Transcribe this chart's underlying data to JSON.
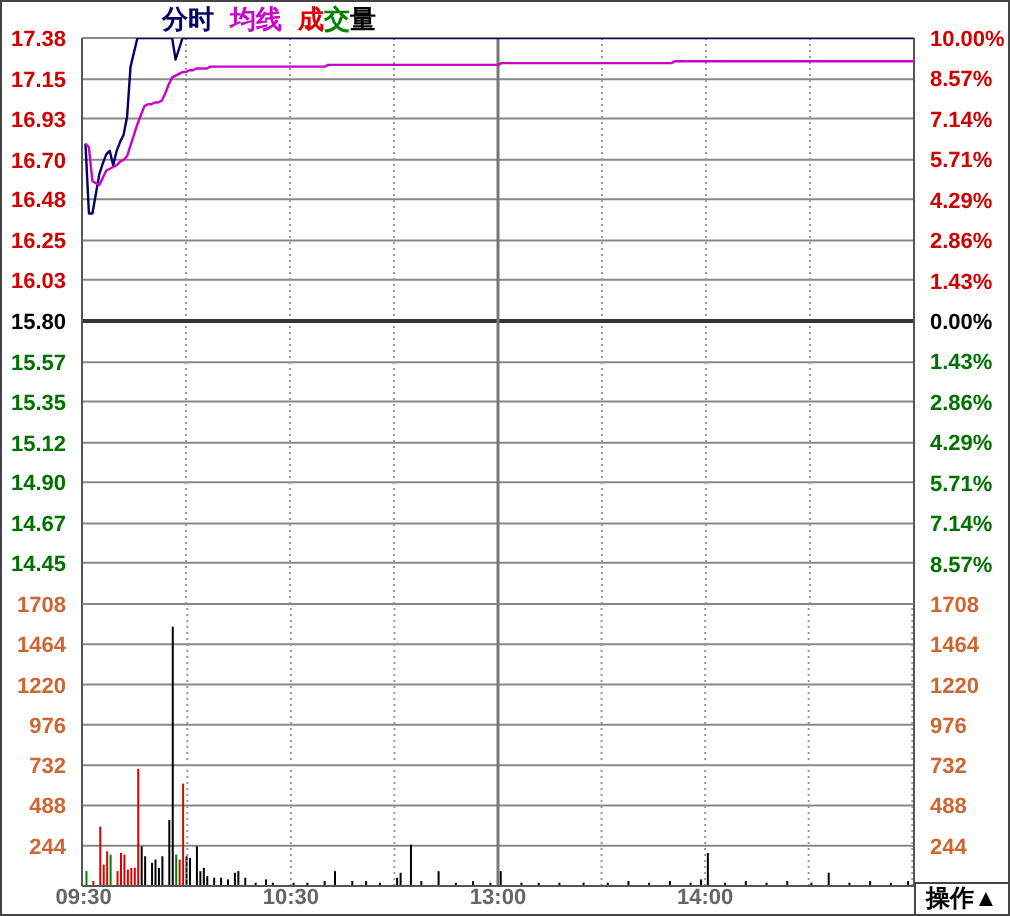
{
  "chart_data": [
    {
      "type": "line",
      "legend": "top left",
      "marker": "none",
      "categories": [
        "09:30",
        null,
        null,
        null,
        null,
        null,
        null,
        null,
        null,
        null,
        null,
        null,
        null,
        null,
        null,
        null,
        null,
        null,
        null,
        null,
        null,
        null,
        null,
        null,
        null,
        null,
        null,
        null,
        null,
        null,
        null,
        null,
        null,
        null,
        null,
        null,
        null,
        null,
        null,
        null,
        null,
        null,
        null,
        null,
        null,
        null,
        null,
        null,
        null,
        null,
        null,
        null,
        null,
        null,
        null,
        null,
        null,
        null,
        null,
        null,
        "10:30",
        null,
        null,
        null,
        null,
        null,
        null,
        null,
        null,
        null,
        null,
        null,
        null,
        null,
        null,
        null,
        null,
        null,
        null,
        null,
        null,
        null,
        null,
        null,
        null,
        null,
        null,
        null,
        null,
        null,
        null,
        null,
        null,
        null,
        null,
        null,
        null,
        null,
        null,
        null,
        null,
        null,
        null,
        null,
        null,
        null,
        null,
        null,
        null,
        null,
        null,
        null,
        null,
        null,
        null,
        null,
        null,
        null,
        null,
        null,
        "13:00",
        null,
        null,
        null,
        null,
        null,
        null,
        null,
        null,
        null,
        null,
        null,
        null,
        null,
        null,
        null,
        null,
        null,
        null,
        null,
        null,
        null,
        null,
        null,
        null,
        null,
        null,
        null,
        null,
        null,
        null,
        null,
        null,
        null,
        null,
        null,
        null,
        null,
        null,
        null,
        null,
        null,
        null,
        null,
        null,
        null,
        null,
        null,
        null,
        null,
        null,
        null,
        null,
        null,
        null,
        null,
        null,
        null,
        null,
        null,
        "14:00",
        null,
        null,
        null,
        null,
        null,
        null,
        null,
        null,
        null,
        null,
        null,
        null,
        null,
        null,
        null,
        null,
        null,
        null,
        null,
        null,
        null,
        null,
        null,
        null,
        null,
        null,
        null,
        null,
        null,
        null,
        null,
        null,
        null,
        null,
        null,
        null,
        null,
        null,
        null,
        null,
        null,
        null,
        null,
        null,
        null,
        null,
        null,
        null,
        null,
        null,
        null,
        null,
        null,
        null,
        null,
        null,
        null,
        null,
        null,
        null
      ],
      "series": [
        {
          "name": "分时",
          "color": "#000066",
          "values": [
            null,
            16.79,
            16.4,
            16.4,
            16.51,
            16.62,
            16.68,
            16.73,
            16.75,
            16.67,
            16.75,
            16.8,
            16.84,
            16.94,
            17.22,
            17.3,
            17.38,
            17.38,
            17.38,
            17.38,
            17.38,
            17.38,
            17.38,
            17.38,
            17.38,
            17.38,
            17.38,
            17.26,
            17.32,
            17.38,
            17.38,
            17.38,
            17.38,
            17.38,
            17.38,
            17.38,
            17.38,
            17.38,
            17.38,
            17.38,
            17.38,
            17.38,
            17.38,
            17.38,
            17.38,
            17.38,
            17.38,
            17.38,
            17.38,
            17.38,
            17.38,
            17.38,
            17.38,
            17.38,
            17.38,
            17.38,
            17.38,
            17.38,
            17.38,
            17.38,
            17.38,
            17.38,
            17.38,
            17.38,
            17.38,
            17.38,
            17.38,
            17.38,
            17.38,
            17.38,
            17.38,
            17.38,
            17.38,
            17.38,
            17.38,
            17.38,
            17.38,
            17.38,
            17.38,
            17.38,
            17.38,
            17.38,
            17.38,
            17.38,
            17.38,
            17.38,
            17.38,
            17.38,
            17.38,
            17.38,
            17.38,
            17.38,
            17.38,
            17.38,
            17.38,
            17.38,
            17.38,
            17.38,
            17.38,
            17.38,
            17.38,
            17.38,
            17.38,
            17.38,
            17.38,
            17.38,
            17.38,
            17.38,
            17.38,
            17.38,
            17.38,
            17.38,
            17.38,
            17.38,
            17.38,
            17.38,
            17.38,
            17.38,
            17.38,
            17.38,
            17.38,
            17.38,
            17.38,
            17.38,
            17.38,
            17.38,
            17.38,
            17.38,
            17.38,
            17.38,
            17.38,
            17.38,
            17.38,
            17.38,
            17.38,
            17.38,
            17.38,
            17.38,
            17.38,
            17.38,
            17.38,
            17.38,
            17.38,
            17.38,
            17.38,
            17.38,
            17.38,
            17.38,
            17.38,
            17.38,
            17.38,
            17.38,
            17.38,
            17.38,
            17.38,
            17.38,
            17.38,
            17.38,
            17.38,
            17.38,
            17.38,
            17.38,
            17.38,
            17.38,
            17.38,
            17.38,
            17.38,
            17.38,
            17.38,
            17.38,
            17.38,
            17.38,
            17.38,
            17.38,
            17.38,
            17.38,
            17.38,
            17.38,
            17.38,
            17.38,
            17.38,
            17.38,
            17.38,
            17.38,
            17.38,
            17.38,
            17.38,
            17.38,
            17.38,
            17.38,
            17.38,
            17.38,
            17.38,
            17.38,
            17.38,
            17.38,
            17.38,
            17.38,
            17.38,
            17.38,
            17.38,
            17.38,
            17.38,
            17.38,
            17.38,
            17.38,
            17.38,
            17.38,
            17.38,
            17.38,
            17.38,
            17.38,
            17.38,
            17.38,
            17.38,
            17.38,
            17.38,
            17.38,
            17.38,
            17.38,
            17.38,
            17.38,
            17.38,
            17.38,
            17.38,
            17.38,
            17.38,
            17.38,
            17.38,
            17.38,
            17.38,
            17.38,
            17.38,
            17.38,
            17.38,
            17.38,
            17.38,
            17.38,
            17.38,
            17.38,
            17.38
          ]
        },
        {
          "name": "均线",
          "color": "#cc00cc",
          "values": [
            null,
            16.79,
            16.77,
            16.58,
            16.57,
            16.56,
            16.6,
            16.64,
            16.65,
            16.66,
            16.67,
            16.69,
            16.7,
            16.72,
            16.78,
            16.84,
            16.9,
            16.95,
            17.0,
            17.01,
            17.01,
            17.02,
            17.02,
            17.03,
            17.07,
            17.12,
            17.16,
            17.17,
            17.18,
            17.19,
            17.19,
            17.2,
            17.2,
            17.21,
            17.21,
            17.21,
            17.21,
            17.22,
            17.22,
            17.22,
            17.22,
            17.22,
            17.22,
            17.22,
            17.22,
            17.22,
            17.22,
            17.22,
            17.22,
            17.22,
            17.22,
            17.22,
            17.22,
            17.22,
            17.22,
            17.22,
            17.22,
            17.22,
            17.22,
            17.22,
            17.22,
            17.22,
            17.22,
            17.22,
            17.22,
            17.22,
            17.22,
            17.22,
            17.22,
            17.22,
            17.22,
            17.23,
            17.23,
            17.23,
            17.23,
            17.23,
            17.23,
            17.23,
            17.23,
            17.23,
            17.23,
            17.23,
            17.23,
            17.23,
            17.23,
            17.23,
            17.23,
            17.23,
            17.23,
            17.23,
            17.23,
            17.23,
            17.23,
            17.23,
            17.23,
            17.23,
            17.23,
            17.23,
            17.23,
            17.23,
            17.23,
            17.23,
            17.23,
            17.23,
            17.23,
            17.23,
            17.23,
            17.23,
            17.23,
            17.23,
            17.23,
            17.23,
            17.23,
            17.23,
            17.23,
            17.23,
            17.23,
            17.23,
            17.23,
            17.23,
            17.23,
            17.24,
            17.24,
            17.24,
            17.24,
            17.24,
            17.24,
            17.24,
            17.24,
            17.24,
            17.24,
            17.24,
            17.24,
            17.24,
            17.24,
            17.24,
            17.24,
            17.24,
            17.24,
            17.24,
            17.24,
            17.24,
            17.24,
            17.24,
            17.24,
            17.24,
            17.24,
            17.24,
            17.24,
            17.24,
            17.24,
            17.24,
            17.24,
            17.24,
            17.24,
            17.24,
            17.24,
            17.24,
            17.24,
            17.24,
            17.24,
            17.24,
            17.24,
            17.24,
            17.24,
            17.24,
            17.24,
            17.24,
            17.24,
            17.24,
            17.24,
            17.25,
            17.25,
            17.25,
            17.25,
            17.25,
            17.25,
            17.25,
            17.25,
            17.25,
            17.25,
            17.25,
            17.25,
            17.25,
            17.25,
            17.25,
            17.25,
            17.25,
            17.25,
            17.25,
            17.25,
            17.25,
            17.25,
            17.25,
            17.25,
            17.25,
            17.25,
            17.25,
            17.25,
            17.25,
            17.25,
            17.25,
            17.25,
            17.25,
            17.25,
            17.25,
            17.25,
            17.25,
            17.25,
            17.25,
            17.25,
            17.25,
            17.25,
            17.25,
            17.25,
            17.25,
            17.25,
            17.25,
            17.25,
            17.25,
            17.25,
            17.25,
            17.25,
            17.25,
            17.25,
            17.25,
            17.25,
            17.25,
            17.25,
            17.25,
            17.25,
            17.25,
            17.25,
            17.25,
            17.25,
            17.25,
            17.25,
            17.25,
            17.25,
            17.25,
            17.25
          ]
        }
      ],
      "ylim": [
        14.22,
        17.38
      ],
      "yticks": [
        {
          "value": 17.38,
          "label": "17.38"
        },
        {
          "value": 17.15,
          "label": "17.15"
        },
        {
          "value": 16.93,
          "label": "16.93"
        },
        {
          "value": 16.7,
          "label": "16.70"
        },
        {
          "value": 16.48,
          "label": "16.48"
        },
        {
          "value": 16.25,
          "label": "16.25"
        },
        {
          "value": 16.03,
          "label": "16.03"
        },
        {
          "value": 15.8,
          "label": "15.80"
        },
        {
          "value": 15.57,
          "label": "15.57"
        },
        {
          "value": 15.35,
          "label": "15.35"
        },
        {
          "value": 15.12,
          "label": "15.12"
        },
        {
          "value": 14.9,
          "label": "14.90"
        },
        {
          "value": 14.67,
          "label": "14.67"
        },
        {
          "value": 14.45,
          "label": "14.45"
        }
      ],
      "y2lim": [
        -10,
        10
      ],
      "y2ticks": [
        {
          "value": 10,
          "label": "10.00%"
        },
        {
          "value": 8.57,
          "label": "8.57%"
        },
        {
          "value": 7.14,
          "label": "7.14%"
        },
        {
          "value": 5.71,
          "label": "5.71%"
        },
        {
          "value": 4.29,
          "label": "4.29%"
        },
        {
          "value": 2.86,
          "label": "2.86%"
        },
        {
          "value": 1.43,
          "label": "1.43%"
        },
        {
          "value": 0,
          "label": "0.00%"
        },
        {
          "value": -1.43,
          "label": "1.43%"
        },
        {
          "value": -2.86,
          "label": "2.86%"
        },
        {
          "value": -4.29,
          "label": "4.29%"
        },
        {
          "value": -5.71,
          "label": "5.71%"
        },
        {
          "value": -7.14,
          "label": "7.14%"
        },
        {
          "value": -8.57,
          "label": "8.57%"
        }
      ],
      "grid": true,
      "tick_labels": "y",
      "ref_lines": [
        {
          "axis": "y",
          "value": 15.8,
          "color": "#333333"
        },
        {
          "axis": "x",
          "value": "13:00",
          "color": "#777777"
        }
      ]
    },
    {
      "type": "bar",
      "legend": "top left",
      "categories": [
        "09:30",
        null,
        null,
        null,
        null,
        null,
        null,
        null,
        null,
        null,
        null,
        null,
        null,
        null,
        null,
        null,
        null,
        null,
        null,
        null,
        null,
        null,
        null,
        null,
        null,
        null,
        null,
        null,
        null,
        null,
        null,
        null,
        null,
        null,
        null,
        null,
        null,
        null,
        null,
        null,
        null,
        null,
        null,
        null,
        null,
        null,
        null,
        null,
        null,
        null,
        null,
        null,
        null,
        null,
        null,
        null,
        null,
        null,
        null,
        null,
        "10:30",
        null,
        null,
        null,
        null,
        null,
        null,
        null,
        null,
        null,
        null,
        null,
        null,
        null,
        null,
        null,
        null,
        null,
        null,
        null,
        null,
        null,
        null,
        null,
        null,
        null,
        null,
        null,
        null,
        null,
        null,
        null,
        null,
        null,
        null,
        null,
        null,
        null,
        null,
        null,
        null,
        null,
        null,
        null,
        null,
        null,
        null,
        null,
        null,
        null,
        null,
        null,
        null,
        null,
        null,
        null,
        null,
        null,
        null,
        null,
        "13:00",
        null,
        null,
        null,
        null,
        null,
        null,
        null,
        null,
        null,
        null,
        null,
        null,
        null,
        null,
        null,
        null,
        null,
        null,
        null,
        null,
        null,
        null,
        null,
        null,
        null,
        null,
        null,
        null,
        null,
        null,
        null,
        null,
        null,
        null,
        null,
        null,
        null,
        null,
        null,
        null,
        null,
        null,
        null,
        null,
        null,
        null,
        null,
        null,
        null,
        null,
        null,
        null,
        null,
        null,
        null,
        null,
        null,
        null,
        null,
        "14:00",
        null,
        null,
        null,
        null,
        null,
        null,
        null,
        null,
        null,
        null,
        null,
        null,
        null,
        null,
        null,
        null,
        null,
        null,
        null,
        null,
        null,
        null,
        null,
        null,
        null,
        null,
        null,
        null,
        null,
        null,
        null,
        null,
        null,
        null,
        null,
        null,
        null,
        null,
        null,
        null,
        null,
        null,
        null,
        null,
        null,
        null,
        null,
        null,
        null,
        null,
        null,
        null,
        null,
        null,
        null,
        null,
        null,
        null,
        null,
        null
      ],
      "series": [
        {
          "name": "成交量",
          "color": "#000000",
          "values": [
            null,
            90,
            null,
            30,
            null,
            360,
            130,
            210,
            190,
            null,
            90,
            200,
            190,
            100,
            110,
            110,
            710,
            240,
            180,
            null,
            140,
            160,
            110,
            180,
            null,
            400,
            1570,
            190,
            160,
            620,
            180,
            170,
            null,
            240,
            90,
            110,
            60,
            null,
            50,
            null,
            50,
            null,
            40,
            null,
            80,
            90,
            null,
            50,
            null,
            null,
            20,
            null,
            null,
            40,
            null,
            20,
            null,
            null,
            null,
            null,
            null,
            20,
            null,
            null,
            null,
            20,
            null,
            null,
            null,
            null,
            30,
            null,
            null,
            90,
            null,
            null,
            null,
            null,
            30,
            null,
            null,
            null,
            30,
            null,
            null,
            null,
            20,
            null,
            null,
            null,
            null,
            50,
            80,
            null,
            null,
            250,
            null,
            null,
            30,
            null,
            null,
            null,
            null,
            90,
            null,
            null,
            null,
            null,
            20,
            null,
            null,
            null,
            null,
            30,
            null,
            null,
            null,
            null,
            20,
            null,
            null,
            90,
            null,
            null,
            null,
            null,
            null,
            20,
            null,
            null,
            null,
            null,
            20,
            null,
            null,
            null,
            null,
            null,
            20,
            null,
            null,
            null,
            null,
            null,
            null,
            20,
            null,
            null,
            null,
            null,
            null,
            null,
            20,
            null,
            null,
            null,
            null,
            null,
            30,
            null,
            null,
            null,
            null,
            null,
            20,
            null,
            null,
            null,
            null,
            null,
            30,
            null,
            null,
            null,
            null,
            null,
            20,
            null,
            null,
            40,
            null,
            200,
            null,
            null,
            null,
            null,
            20,
            null,
            null,
            null,
            null,
            null,
            30,
            null,
            null,
            null,
            null,
            null,
            20,
            null,
            null,
            null,
            null,
            null,
            30,
            null,
            null,
            null,
            null,
            null,
            null,
            20,
            null,
            null,
            null,
            null,
            80,
            null,
            null,
            null,
            null,
            null,
            20,
            null,
            null,
            null,
            null,
            null,
            30,
            null,
            null,
            null,
            null,
            null,
            20,
            null,
            null,
            null,
            null,
            30,
            null
          ],
          "colors": [
            null,
            "#008000",
            null,
            "#dd0000",
            null,
            "#dd0000",
            "#dd0000",
            "#dd0000",
            "#008000",
            null,
            "#dd0000",
            "#dd0000",
            "#dd0000",
            "#dd0000",
            "#dd0000",
            "#dd0000",
            "#dd0000",
            null,
            null,
            null,
            null,
            null,
            null,
            null,
            null,
            null,
            null,
            "#008000",
            "#dd0000",
            "#dd0000",
            null,
            null,
            null,
            null,
            null,
            null,
            null,
            null,
            null,
            null,
            null,
            null,
            null,
            null,
            null,
            null,
            null,
            null,
            null,
            null,
            null,
            null,
            null,
            null,
            null,
            null,
            null,
            null,
            null,
            null,
            null,
            null,
            null,
            null,
            null,
            null,
            null,
            null,
            null,
            null,
            null,
            null,
            null,
            null,
            null,
            null,
            null,
            null,
            null,
            null,
            null,
            null,
            null,
            null,
            null,
            null,
            null,
            null,
            null,
            null,
            null,
            null,
            null,
            null,
            null,
            null,
            null,
            null,
            null,
            null,
            null,
            null,
            null,
            null,
            null,
            null,
            null,
            null,
            null,
            null,
            null,
            null,
            null,
            null,
            null,
            null,
            null,
            null,
            null,
            null,
            null,
            null,
            null,
            null,
            null,
            null,
            null,
            null,
            null,
            null,
            null,
            null,
            null,
            null,
            null,
            null,
            null,
            null,
            null,
            null,
            null,
            null,
            null,
            null,
            null,
            null,
            null,
            null,
            null,
            null,
            null,
            null,
            null,
            null,
            null,
            null,
            null,
            null,
            null,
            null,
            null,
            null,
            null,
            null,
            null,
            null,
            null,
            null,
            null,
            null,
            null,
            null,
            null,
            null,
            null,
            null,
            null,
            null,
            null,
            null,
            null,
            null,
            null,
            null,
            null,
            null,
            null,
            null,
            null,
            null,
            null,
            null,
            null,
            null,
            null,
            null,
            null,
            null,
            null,
            null,
            null,
            null,
            null,
            null,
            null,
            null,
            null,
            null,
            null,
            null,
            null,
            null,
            null,
            null,
            null,
            null,
            null,
            null,
            null,
            null,
            null,
            null,
            null,
            null,
            null,
            null,
            null,
            null,
            null,
            null,
            null,
            null,
            null,
            null,
            null,
            null,
            null,
            null,
            null,
            null,
            null
          ]
        }
      ],
      "ylim": [
        0,
        1708
      ],
      "yticks": [
        {
          "value": 0,
          "label": null
        },
        244,
        488,
        732,
        976,
        1220,
        1464,
        1708
      ],
      "y2lim": [
        0,
        1708
      ],
      "y2ticks": [
        {
          "value": 0,
          "label": null
        },
        244,
        488,
        732,
        976,
        1220,
        1464,
        1708
      ],
      "grid": true,
      "ref_lines": [
        {
          "axis": "x",
          "value": "13:00",
          "color": "#777777"
        }
      ],
      "annotations": [
        "操作▲"
      ]
    }
  ]
}
